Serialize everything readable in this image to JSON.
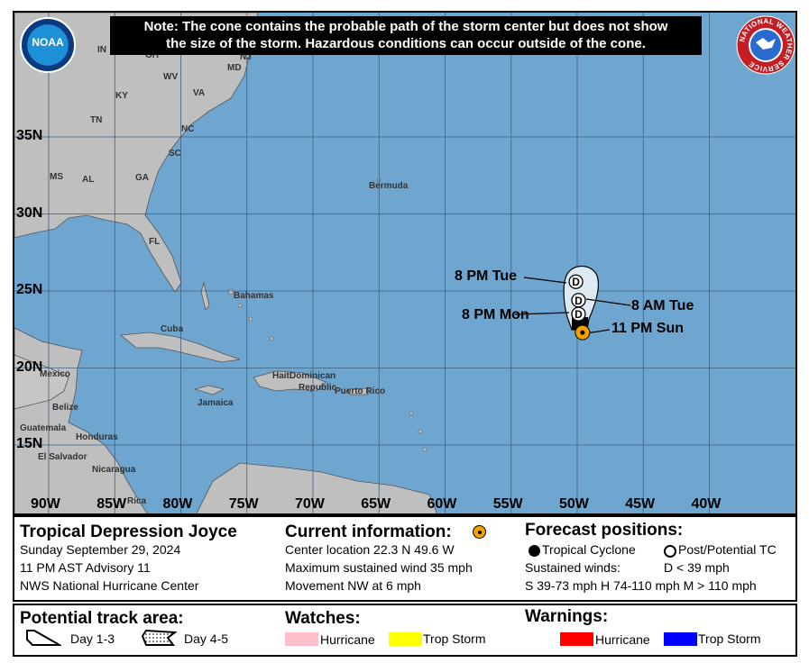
{
  "note": {
    "line1": "Note: The cone contains the probable path of the storm center but does not show",
    "line2": "the size of the storm. Hazardous conditions can occur outside of the cone."
  },
  "logos": {
    "left": "NOAA",
    "right": "NATIONAL WEATHER SERVICE"
  },
  "map": {
    "lon_labels": [
      "90W",
      "85W",
      "80W",
      "75W",
      "70W",
      "65W",
      "60W",
      "55W",
      "50W",
      "45W",
      "40W"
    ],
    "lat_labels": [
      "35N",
      "30N",
      "25N",
      "20N",
      "15N"
    ],
    "place_labels": [
      "IN",
      "OH",
      "WV",
      "VA",
      "KY",
      "TN",
      "NC",
      "SC",
      "MS",
      "AL",
      "GA",
      "FL",
      "MD",
      "NJ",
      "Bermuda",
      "Bahamas",
      "Cuba",
      "Mexico",
      "Belize",
      "Jamaica",
      "Haiti",
      "Dominican",
      "Republic",
      "Puerto Rico",
      "Guatemala",
      "Honduras",
      "El Salvador",
      "Nicaragua",
      "Rica"
    ],
    "colors": {
      "ocean": "#6fa6d0",
      "land": "#bfbfbf",
      "cone": "#dde9f3",
      "current_marker": "#f5a000"
    },
    "forecast_points": [
      {
        "label": "11 PM Sun",
        "lat": 22.3,
        "lon": -49.6,
        "type": "current"
      },
      {
        "label": "8 PM Mon",
        "lat": 23.5,
        "lon": -49.9,
        "type": "D"
      },
      {
        "label": "8 AM Tue",
        "lat": 24.4,
        "lon": -49.9,
        "type": "D"
      },
      {
        "label": "8 PM Tue",
        "lat": 25.6,
        "lon": -50.1,
        "type": "D"
      }
    ],
    "marker_letter": "D"
  },
  "info": {
    "storm_name": "Tropical Depression Joyce",
    "date": "Sunday September 29, 2024",
    "advisory": "11 PM AST Advisory 11",
    "center": "NWS National Hurricane Center",
    "current_title": "Current information:",
    "location": "Center location 22.3 N 49.6 W",
    "wind": "Maximum sustained wind 35 mph",
    "movement": "Movement NW at 6 mph",
    "forecast_title": "Forecast positions:",
    "tc": "Tropical Cyclone",
    "ptc": "Post/Potential TC",
    "sustained": "Sustained winds:",
    "d": "D < 39 mph",
    "shm": "S 39-73 mph  H 74-110 mph  M > 110 mph"
  },
  "legend": {
    "track_title": "Potential track area:",
    "day13": "Day 1-3",
    "day45": "Day 4-5",
    "watches_title": "Watches:",
    "watch_hurricane": "Hurricane",
    "watch_ts": "Trop Storm",
    "warnings_title": "Warnings:",
    "warn_hurricane": "Hurricane",
    "warn_ts": "Trop Storm",
    "colors": {
      "watch_hurricane": "#ffc0cb",
      "watch_ts": "#ffff00",
      "warn_hurricane": "#ff0000",
      "warn_ts": "#0000ff"
    }
  }
}
